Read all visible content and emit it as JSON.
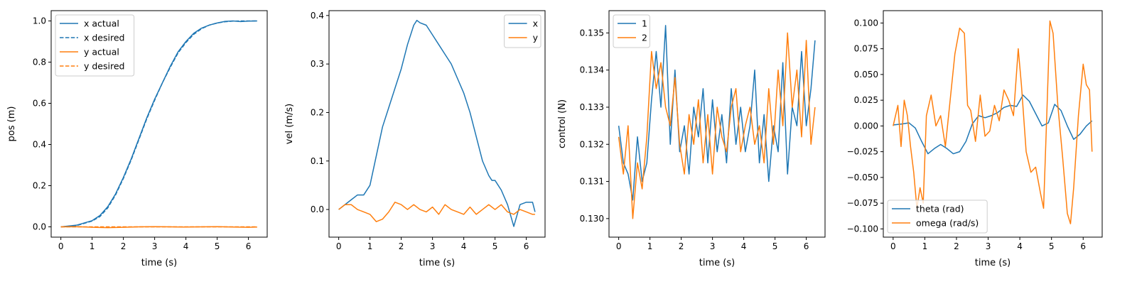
{
  "colors": {
    "blue": "#1f77b4",
    "orange": "#ff7f0e"
  },
  "chart_data": [
    {
      "type": "line",
      "xlabel": "time (s)",
      "ylabel": "pos (m)",
      "xlim": [
        -0.31,
        6.6
      ],
      "ylim": [
        -0.05,
        1.05
      ],
      "xticks": [
        0,
        1,
        2,
        3,
        4,
        5,
        6
      ],
      "yticks": [
        0.0,
        0.2,
        0.4,
        0.6,
        0.8,
        1.0
      ],
      "ytick_labels": [
        "0.0",
        "0.2",
        "0.4",
        "0.6",
        "0.8",
        "1.0"
      ],
      "legend": "upper left",
      "grid": false,
      "series": [
        {
          "name": "x actual",
          "color": "#1f77b4",
          "dash": "solid",
          "x": [
            0,
            0.5,
            1.0,
            1.25,
            1.5,
            1.75,
            2.0,
            2.25,
            2.5,
            2.75,
            3.0,
            3.25,
            3.5,
            3.75,
            4.0,
            4.25,
            4.5,
            4.75,
            5.0,
            5.25,
            5.5,
            5.75,
            6.0,
            6.28
          ],
          "y": [
            0,
            0.008,
            0.03,
            0.055,
            0.098,
            0.16,
            0.24,
            0.33,
            0.43,
            0.53,
            0.62,
            0.7,
            0.78,
            0.85,
            0.9,
            0.94,
            0.965,
            0.98,
            0.99,
            0.998,
            1.0,
            0.997,
            0.999,
            1.0
          ]
        },
        {
          "name": "x desired",
          "color": "#1f77b4",
          "dash": "dashed",
          "x": [
            0,
            0.5,
            1.0,
            1.25,
            1.5,
            1.75,
            2.0,
            2.25,
            2.5,
            2.75,
            3.0,
            3.25,
            3.5,
            3.75,
            4.0,
            4.25,
            4.5,
            4.75,
            5.0,
            5.25,
            5.5,
            5.75,
            6.0,
            6.28
          ],
          "y": [
            0,
            0.006,
            0.028,
            0.05,
            0.092,
            0.155,
            0.235,
            0.325,
            0.425,
            0.525,
            0.615,
            0.7,
            0.775,
            0.845,
            0.895,
            0.935,
            0.962,
            0.98,
            0.99,
            0.996,
            0.999,
            1.0,
            1.0,
            1.0
          ]
        },
        {
          "name": "y actual",
          "color": "#ff7f0e",
          "dash": "solid",
          "x": [
            0,
            0.5,
            1.0,
            1.5,
            2.0,
            2.5,
            3.0,
            3.5,
            4.0,
            4.5,
            5.0,
            5.5,
            6.0,
            6.28
          ],
          "y": [
            0,
            0.001,
            -0.002,
            -0.004,
            -0.002,
            0.0,
            0.001,
            0.0,
            -0.001,
            0.0,
            0.001,
            -0.001,
            -0.002,
            -0.001
          ]
        },
        {
          "name": "y desired",
          "color": "#ff7f0e",
          "dash": "dashed",
          "x": [
            0,
            6.28
          ],
          "y": [
            0,
            0
          ]
        }
      ]
    },
    {
      "type": "line",
      "xlabel": "time (s)",
      "ylabel": "vel (m/s)",
      "xlim": [
        -0.31,
        6.6
      ],
      "ylim": [
        -0.057,
        0.41
      ],
      "xticks": [
        0,
        1,
        2,
        3,
        4,
        5,
        6
      ],
      "yticks": [
        0.0,
        0.1,
        0.2,
        0.3,
        0.4
      ],
      "ytick_labels": [
        "0.0",
        "0.1",
        "0.2",
        "0.3",
        "0.4"
      ],
      "legend": "upper right",
      "grid": false,
      "series": [
        {
          "name": "x",
          "color": "#1f77b4",
          "dash": "solid",
          "x": [
            0,
            0.2,
            0.4,
            0.6,
            0.8,
            1.0,
            1.2,
            1.4,
            1.6,
            1.8,
            2.0,
            2.2,
            2.4,
            2.5,
            2.6,
            2.8,
            3.0,
            3.2,
            3.4,
            3.6,
            3.8,
            4.0,
            4.2,
            4.4,
            4.6,
            4.8,
            4.9,
            5.0,
            5.2,
            5.4,
            5.6,
            5.8,
            6.0,
            6.2,
            6.28
          ],
          "y": [
            0.0,
            0.01,
            0.02,
            0.03,
            0.03,
            0.05,
            0.11,
            0.17,
            0.21,
            0.25,
            0.29,
            0.34,
            0.38,
            0.39,
            0.385,
            0.38,
            0.36,
            0.34,
            0.32,
            0.3,
            0.27,
            0.24,
            0.2,
            0.15,
            0.1,
            0.07,
            0.06,
            0.06,
            0.04,
            0.01,
            -0.035,
            0.01,
            0.015,
            0.015,
            -0.005
          ]
        },
        {
          "name": "y",
          "color": "#ff7f0e",
          "dash": "solid",
          "x": [
            0,
            0.2,
            0.4,
            0.6,
            0.8,
            1.0,
            1.2,
            1.4,
            1.6,
            1.8,
            2.0,
            2.2,
            2.4,
            2.6,
            2.8,
            3.0,
            3.2,
            3.4,
            3.6,
            3.8,
            4.0,
            4.2,
            4.4,
            4.6,
            4.8,
            5.0,
            5.2,
            5.4,
            5.6,
            5.8,
            6.0,
            6.2,
            6.28
          ],
          "y": [
            0.0,
            0.01,
            0.01,
            0.0,
            -0.005,
            -0.01,
            -0.025,
            -0.02,
            -0.005,
            0.015,
            0.01,
            0.0,
            0.01,
            0.0,
            -0.005,
            0.005,
            -0.01,
            0.01,
            0.0,
            -0.005,
            -0.01,
            0.005,
            -0.01,
            0.0,
            0.01,
            0.0,
            0.01,
            -0.005,
            -0.01,
            0.0,
            -0.005,
            -0.01,
            -0.01
          ]
        }
      ]
    },
    {
      "type": "line",
      "xlabel": "time (s)",
      "ylabel": "control (N)",
      "xlim": [
        -0.31,
        6.6
      ],
      "ylim": [
        0.1295,
        0.1356
      ],
      "xticks": [
        0,
        1,
        2,
        3,
        4,
        5,
        6
      ],
      "yticks": [
        0.13,
        0.131,
        0.132,
        0.133,
        0.134,
        0.135
      ],
      "ytick_labels": [
        "0.130",
        "0.131",
        "0.132",
        "0.133",
        "0.134",
        "0.135"
      ],
      "legend": "upper left",
      "grid": false,
      "series": [
        {
          "name": "1",
          "color": "#1f77b4",
          "dash": "solid",
          "x": [
            0,
            0.15,
            0.3,
            0.45,
            0.6,
            0.75,
            0.9,
            1.05,
            1.2,
            1.35,
            1.5,
            1.65,
            1.8,
            1.95,
            2.1,
            2.25,
            2.4,
            2.55,
            2.7,
            2.85,
            3.0,
            3.15,
            3.3,
            3.45,
            3.6,
            3.75,
            3.9,
            4.05,
            4.2,
            4.35,
            4.5,
            4.65,
            4.8,
            4.95,
            5.1,
            5.25,
            5.4,
            5.55,
            5.7,
            5.85,
            6.0,
            6.15,
            6.28
          ],
          "y": [
            0.1325,
            0.1315,
            0.1312,
            0.1305,
            0.1322,
            0.131,
            0.1315,
            0.1332,
            0.1345,
            0.133,
            0.1352,
            0.132,
            0.134,
            0.1318,
            0.1325,
            0.1312,
            0.133,
            0.1322,
            0.1335,
            0.1315,
            0.1332,
            0.1318,
            0.1328,
            0.1315,
            0.1335,
            0.132,
            0.133,
            0.1318,
            0.1325,
            0.134,
            0.1315,
            0.1328,
            0.131,
            0.1325,
            0.1318,
            0.1342,
            0.1312,
            0.133,
            0.1325,
            0.1345,
            0.1325,
            0.1335,
            0.1348
          ]
        },
        {
          "name": "2",
          "color": "#ff7f0e",
          "dash": "solid",
          "x": [
            0,
            0.15,
            0.3,
            0.45,
            0.6,
            0.75,
            0.9,
            1.05,
            1.2,
            1.35,
            1.5,
            1.65,
            1.8,
            1.95,
            2.1,
            2.25,
            2.4,
            2.55,
            2.7,
            2.85,
            3.0,
            3.15,
            3.3,
            3.45,
            3.6,
            3.75,
            3.9,
            4.05,
            4.2,
            4.35,
            4.5,
            4.65,
            4.8,
            4.95,
            5.1,
            5.25,
            5.4,
            5.55,
            5.7,
            5.85,
            6.0,
            6.15,
            6.28
          ],
          "y": [
            0.1322,
            0.1312,
            0.1325,
            0.13,
            0.1315,
            0.1308,
            0.1322,
            0.1345,
            0.1335,
            0.1342,
            0.133,
            0.1325,
            0.1338,
            0.132,
            0.1312,
            0.1328,
            0.132,
            0.1332,
            0.1315,
            0.1328,
            0.1312,
            0.133,
            0.1322,
            0.1318,
            0.133,
            0.1335,
            0.1318,
            0.1325,
            0.133,
            0.132,
            0.1325,
            0.1315,
            0.1335,
            0.132,
            0.134,
            0.1325,
            0.135,
            0.133,
            0.134,
            0.1322,
            0.1348,
            0.132,
            0.133
          ]
        }
      ]
    },
    {
      "type": "line",
      "xlabel": "time (s)",
      "ylabel": "",
      "xlim": [
        -0.31,
        6.6
      ],
      "ylim": [
        -0.108,
        0.112
      ],
      "xticks": [
        0,
        1,
        2,
        3,
        4,
        5,
        6
      ],
      "yticks": [
        -0.1,
        -0.075,
        -0.05,
        -0.025,
        0.0,
        0.025,
        0.05,
        0.075,
        0.1
      ],
      "ytick_labels": [
        "−0.100",
        "−0.075",
        "−0.050",
        "−0.025",
        "0.000",
        "0.025",
        "0.050",
        "0.075",
        "0.100"
      ],
      "legend": "lower left",
      "grid": false,
      "series": [
        {
          "name": "theta (rad)",
          "color": "#1f77b4",
          "dash": "solid",
          "x": [
            0,
            0.3,
            0.5,
            0.7,
            0.9,
            1.1,
            1.3,
            1.5,
            1.7,
            1.9,
            2.1,
            2.3,
            2.5,
            2.7,
            2.9,
            3.1,
            3.3,
            3.5,
            3.7,
            3.9,
            4.1,
            4.3,
            4.5,
            4.7,
            4.9,
            5.1,
            5.3,
            5.5,
            5.7,
            5.9,
            6.1,
            6.28
          ],
          "y": [
            0.001,
            0.002,
            0.003,
            -0.002,
            -0.015,
            -0.027,
            -0.022,
            -0.018,
            -0.022,
            -0.027,
            -0.025,
            -0.015,
            0.002,
            0.01,
            0.008,
            0.01,
            0.013,
            0.018,
            0.02,
            0.019,
            0.03,
            0.024,
            0.012,
            0.0,
            0.003,
            0.021,
            0.015,
            0.0,
            -0.013,
            -0.008,
            0.0,
            0.005
          ]
        },
        {
          "name": "omega (rad/s)",
          "color": "#ff7f0e",
          "dash": "solid",
          "x": [
            0,
            0.15,
            0.25,
            0.35,
            0.45,
            0.55,
            0.65,
            0.75,
            0.85,
            0.95,
            1.05,
            1.2,
            1.35,
            1.5,
            1.65,
            1.8,
            1.95,
            2.1,
            2.25,
            2.35,
            2.45,
            2.6,
            2.75,
            2.9,
            3.05,
            3.2,
            3.35,
            3.5,
            3.65,
            3.8,
            3.95,
            4.05,
            4.2,
            4.35,
            4.5,
            4.65,
            4.75,
            4.85,
            4.95,
            5.05,
            5.2,
            5.35,
            5.5,
            5.6,
            5.7,
            5.85,
            6.0,
            6.1,
            6.2,
            6.28
          ],
          "y": [
            0.0,
            0.02,
            -0.02,
            0.025,
            0.01,
            -0.02,
            -0.045,
            -0.08,
            -0.06,
            -0.075,
            0.01,
            0.03,
            0.0,
            0.01,
            -0.02,
            0.025,
            0.07,
            0.095,
            0.09,
            0.02,
            0.015,
            -0.015,
            0.03,
            -0.01,
            -0.005,
            0.02,
            0.005,
            0.035,
            0.025,
            0.01,
            0.075,
            0.04,
            -0.025,
            -0.045,
            -0.04,
            -0.065,
            -0.08,
            0.01,
            0.102,
            0.09,
            0.02,
            -0.03,
            -0.085,
            -0.095,
            -0.06,
            0.01,
            0.06,
            0.04,
            0.035,
            -0.025
          ]
        }
      ]
    }
  ]
}
